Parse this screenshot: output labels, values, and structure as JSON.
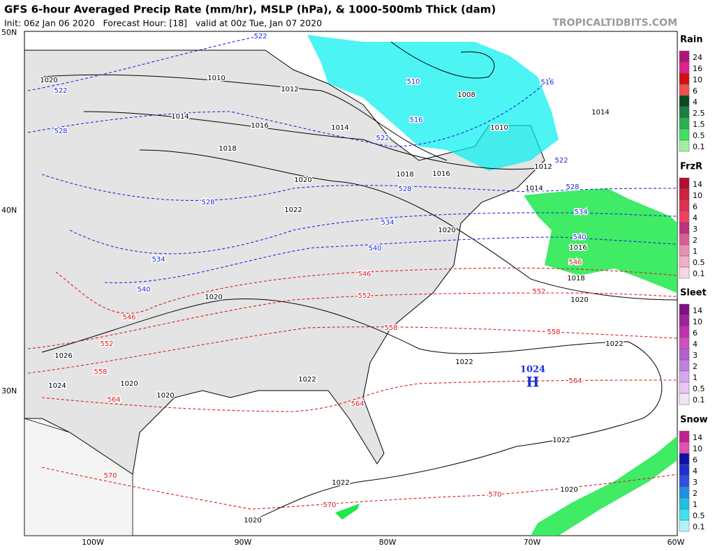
{
  "header": {
    "title": "GFS 6-hour Averaged Precip Rate (mm/hr), MSLP (hPa), & 1000-500mb Thick (dam)",
    "subtitle": "Init: 06z Jan 06 2020   Forecast Hour: [18]   valid at 00z Tue, Jan 07 2020",
    "brand": "TROPICALTIDBITS.COM"
  },
  "lat_labels": [
    "50N",
    "40N",
    "30N"
  ],
  "lon_labels": [
    "100W",
    "90W",
    "80W",
    "70W",
    "60W"
  ],
  "legends": [
    {
      "title": "Rain",
      "labels": [
        "24",
        "16",
        "10",
        "6",
        "4",
        "2.5",
        "1.5",
        "0.5",
        "0.1"
      ]
    },
    {
      "title": "FrzR",
      "labels": [
        "14",
        "10",
        "6",
        "4",
        "3",
        "2",
        "1",
        "0.5",
        "0.1"
      ]
    },
    {
      "title": "Sleet",
      "labels": [
        "14",
        "10",
        "6",
        "4",
        "3",
        "2",
        "1",
        "0.5",
        "0.1"
      ]
    },
    {
      "title": "Snow",
      "labels": [
        "14",
        "10",
        "6",
        "4",
        "3",
        "2",
        "1",
        "0.5",
        "0.1"
      ]
    }
  ],
  "high": {
    "value": "1024",
    "label": "H"
  },
  "isobar_labels": [
    "1010",
    "1012",
    "1014",
    "1016",
    "1014",
    "1018",
    "1020",
    "1008",
    "1010",
    "1012",
    "1014",
    "1014",
    "1018",
    "1016",
    "1020",
    "1022",
    "1020",
    "1016",
    "1018",
    "1020",
    "1020",
    "1022",
    "1022",
    "1026",
    "1024",
    "1020",
    "1020",
    "1022",
    "1022",
    "1022",
    "1020",
    "1020"
  ],
  "thickness_cold_labels": [
    "522",
    "522",
    "528",
    "510",
    "516",
    "516",
    "522",
    "522",
    "528",
    "528",
    "528",
    "534",
    "534",
    "540",
    "540",
    "534",
    "540"
  ],
  "thickness_warm_labels": [
    "546",
    "546",
    "552",
    "552",
    "546",
    "552",
    "558",
    "558",
    "558",
    "564",
    "564",
    "564",
    "570",
    "570",
    "570"
  ]
}
